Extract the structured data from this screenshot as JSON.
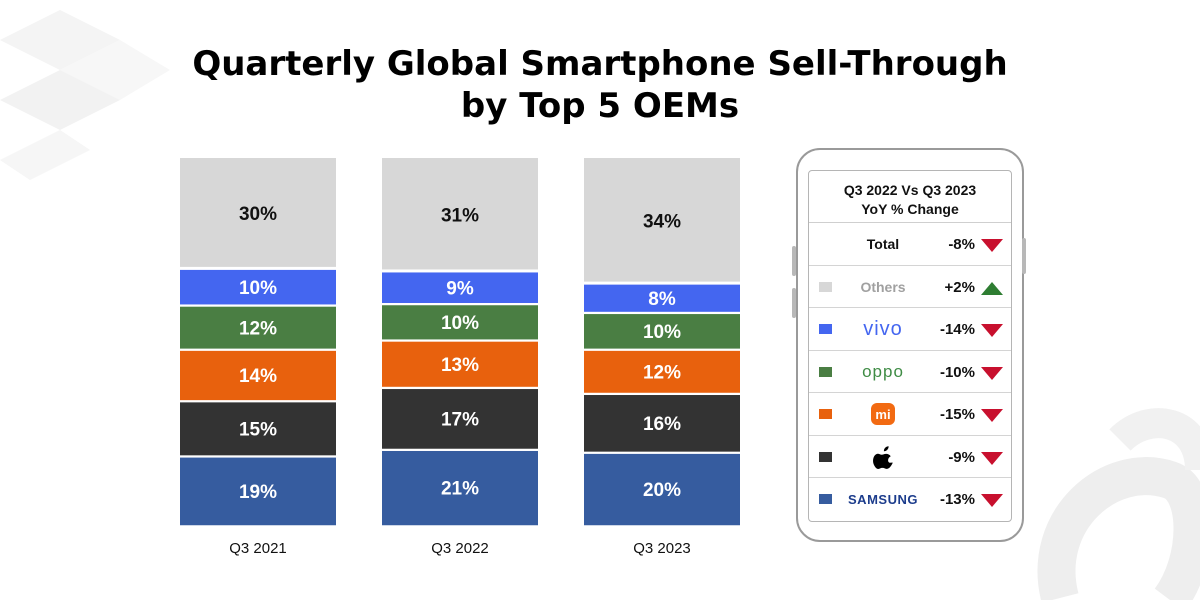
{
  "title_line1": "Quarterly Global Smartphone Sell-Through",
  "title_line2": "by Top 5 OEMs",
  "chart_data": {
    "type": "bar",
    "stacked": true,
    "categories": [
      "Q3 2021",
      "Q3 2022",
      "Q3 2023"
    ],
    "series": [
      {
        "values": [
          19,
          21,
          20
        ],
        "color": "#365c9f"
      },
      {
        "values": [
          15,
          17,
          16
        ],
        "color": "#333333"
      },
      {
        "values": [
          14,
          13,
          12
        ],
        "color": "#e8610d"
      },
      {
        "values": [
          12,
          10,
          10
        ],
        "color": "#4a7e43"
      },
      {
        "values": [
          10,
          9,
          8
        ],
        "color": "#4466f0"
      },
      {
        "values": [
          30,
          31,
          34
        ],
        "color": "#d7d7d7"
      }
    ],
    "value_suffix": "%",
    "ylim": [
      0,
      100
    ],
    "grid": false,
    "legend": "right"
  },
  "yoy_panel": {
    "heading_line1": "Q3 2022 Vs Q3 2023",
    "heading_line2": "YoY % Change",
    "rows": [
      {
        "label": "Total",
        "change": "-8%",
        "direction": "down",
        "swatch": "",
        "label_color": "#111111",
        "logo": ""
      },
      {
        "label": "Others",
        "change": "+2%",
        "direction": "up",
        "swatch": "#d7d7d7",
        "label_color": "#a0a0a0",
        "logo": ""
      },
      {
        "label": "vivo",
        "change": "-14%",
        "direction": "down",
        "swatch": "#4466f0",
        "label_color": "#4466f0",
        "logo": "vivo-wordmark"
      },
      {
        "label": "oppo",
        "change": "-10%",
        "direction": "down",
        "swatch": "#4a7e43",
        "label_color": "#3f8c45",
        "logo": "oppo-wordmark"
      },
      {
        "label": "mi",
        "change": "-15%",
        "direction": "down",
        "swatch": "#e8610d",
        "label_color": "#ffffff",
        "logo": "xiaomi-logo-icon"
      },
      {
        "label": "",
        "change": "-9%",
        "direction": "down",
        "swatch": "#333333",
        "label_color": "#000000",
        "logo": "apple-logo-icon"
      },
      {
        "label": "SAMSUNG",
        "change": "-13%",
        "direction": "down",
        "swatch": "#365c9f",
        "label_color": "#1c3c8c",
        "logo": "samsung-wordmark"
      }
    ],
    "up_color": "#2e7d32",
    "down_color": "#c8102e"
  }
}
